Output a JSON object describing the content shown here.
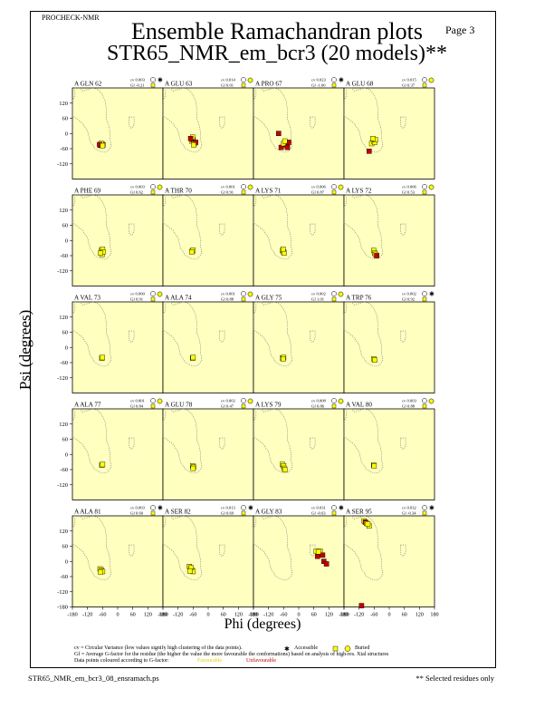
{
  "header": {
    "program": "PROCHECK-NMR",
    "page_label": "Page  3",
    "title_line1": "Ensemble Ramachandran plots",
    "title_line2": "STR65_NMR_em_bcr3 (20 models)**"
  },
  "footer": {
    "filename": "STR65_NMR_em_bcr3_08_ensramach.ps",
    "note": "** Selected residues only"
  },
  "notes": {
    "cv_def": "cv = Circular Variance (low values signify high clustering of the data points).",
    "accessible": "Accessible",
    "buried": "Buried",
    "gf_def": "Gf = Average G-factor for the residue (the higher the value the more favourable the conformations) based on analysis of high-res. Xtal structures",
    "colour_note": "Data points coloured according to G-factor:",
    "favourable": "Favourable",
    "unfavourable": "Unfavourable"
  },
  "colors": {
    "panel_bg": "#ffffc0",
    "favourable": "#ffff00",
    "unfavourable": "#c00000",
    "accessible_box": "#ffff00"
  },
  "chart_data": {
    "type": "scatter",
    "xlabel": "Phi (degrees)",
    "ylabel": "Psi (degrees)",
    "xlim": [
      -180,
      180
    ],
    "ylim": [
      -180,
      180
    ],
    "x_ticks": [
      -180,
      -120,
      -60,
      0,
      60,
      120,
      180
    ],
    "x_tick_labels": [
      "-180",
      "-120",
      "-60",
      "0",
      "60",
      "120",
      "180"
    ],
    "y_ticks": [
      -180,
      -120,
      -60,
      0,
      60,
      120
    ],
    "y_tick_labels": [
      "-180",
      "-120",
      "-60",
      "0",
      "60",
      "120"
    ],
    "residues": [
      {
        "label": "A GLN 62",
        "cv": "cv 0.003",
        "gf": "Gf -0.21",
        "access": "accessible",
        "points": [
          [
            -68,
            -47
          ],
          [
            -62,
            -42
          ],
          [
            -58,
            -45
          ],
          [
            -65,
            -40
          ],
          [
            -72,
            -44
          ],
          [
            -60,
            -48
          ]
        ],
        "colors": [
          "u",
          "u",
          "f",
          "f",
          "u",
          "f"
        ]
      },
      {
        "label": "A GLU 63",
        "cv": "cv 0.014",
        "gf": "Gf 0.01",
        "access": "buried",
        "points": [
          [
            -65,
            -30
          ],
          [
            -60,
            -25
          ],
          [
            -55,
            -40
          ],
          [
            -50,
            -35
          ],
          [
            -62,
            -15
          ],
          [
            -58,
            -45
          ],
          [
            -70,
            -20
          ]
        ],
        "colors": [
          "f",
          "u",
          "f",
          "u",
          "f",
          "f",
          "u"
        ]
      },
      {
        "label": "A PRO 67",
        "cv": "cv 0.023",
        "gf": "Gf -1.00",
        "access": "accessible",
        "points": [
          [
            -70,
            -55
          ],
          [
            -50,
            -45
          ],
          [
            -40,
            -35
          ],
          [
            -60,
            -40
          ],
          [
            -80,
            0
          ],
          [
            -45,
            -55
          ],
          [
            -55,
            -30
          ]
        ],
        "colors": [
          "u",
          "u",
          "u",
          "f",
          "u",
          "u",
          "f"
        ]
      },
      {
        "label": "A GLU 68",
        "cv": "cv 0.015",
        "gf": "Gf 0.37",
        "access": "buried",
        "points": [
          [
            -70,
            -40
          ],
          [
            -62,
            -30
          ],
          [
            -58,
            -35
          ],
          [
            -55,
            -25
          ],
          [
            -65,
            -20
          ],
          [
            -80,
            -70
          ]
        ],
        "colors": [
          "f",
          "f",
          "f",
          "f",
          "f",
          "u"
        ]
      },
      {
        "label": "A PHE 69",
        "cv": "cv 0.003",
        "gf": "Gf 0.62",
        "access": "buried",
        "points": [
          [
            -65,
            -40
          ],
          [
            -60,
            -35
          ],
          [
            -62,
            -55
          ],
          [
            -58,
            -45
          ],
          [
            -68,
            -50
          ]
        ],
        "colors": [
          "f",
          "f",
          "f",
          "f",
          "f"
        ]
      },
      {
        "label": "A THR 70",
        "cv": "cv 0.001",
        "gf": "Gf 0.91",
        "access": "buried",
        "points": [
          [
            -63,
            -42
          ],
          [
            -61,
            -38
          ],
          [
            -65,
            -45
          ]
        ],
        "colors": [
          "f",
          "f",
          "f"
        ]
      },
      {
        "label": "A LYS 71",
        "cv": "cv 0.006",
        "gf": "Gf 0.87",
        "access": "buried",
        "points": [
          [
            -65,
            -40
          ],
          [
            -60,
            -45
          ],
          [
            -58,
            -50
          ],
          [
            -62,
            -35
          ]
        ],
        "colors": [
          "f",
          "f",
          "f",
          "f"
        ]
      },
      {
        "label": "A LYS 72",
        "cv": "cv 0.006",
        "gf": "Gf 0.53",
        "access": "buried",
        "points": [
          [
            -62,
            -40
          ],
          [
            -58,
            -50
          ],
          [
            -55,
            -55
          ],
          [
            -50,
            -60
          ]
        ],
        "colors": [
          "f",
          "f",
          "f",
          "u"
        ]
      },
      {
        "label": "A VAL 73",
        "cv": "cv 0.000",
        "gf": "Gf 0.91",
        "access": "buried",
        "points": [
          [
            -63,
            -42
          ],
          [
            -61,
            -40
          ]
        ],
        "colors": [
          "f",
          "f"
        ]
      },
      {
        "label": "A ALA 74",
        "cv": "cv 0.001",
        "gf": "Gf 0.88",
        "access": "buried",
        "points": [
          [
            -62,
            -42
          ],
          [
            -60,
            -40
          ]
        ],
        "colors": [
          "f",
          "f"
        ]
      },
      {
        "label": "A GLY 75",
        "cv": "cv 0.002",
        "gf": "Gf 1.01",
        "access": "buried",
        "points": [
          [
            -65,
            -42
          ],
          [
            -60,
            -40
          ],
          [
            -62,
            -45
          ]
        ],
        "colors": [
          "f",
          "f",
          "f"
        ]
      },
      {
        "label": "A TRP 76",
        "cv": "cv 0.002",
        "gf": "Gf 0.92",
        "access": "accessible",
        "points": [
          [
            -62,
            -45
          ],
          [
            -58,
            -50
          ]
        ],
        "colors": [
          "f",
          "f"
        ]
      },
      {
        "label": "A ALA 77",
        "cv": "cv 0.001",
        "gf": "Gf 0.84",
        "access": "buried",
        "points": [
          [
            -63,
            -42
          ],
          [
            -60,
            -40
          ]
        ],
        "colors": [
          "f",
          "f"
        ]
      },
      {
        "label": "A GLU 78",
        "cv": "cv 0.002",
        "gf": "Gf 0.47",
        "access": "buried",
        "points": [
          [
            -62,
            -45
          ],
          [
            -58,
            -50
          ],
          [
            -60,
            -55
          ]
        ],
        "colors": [
          "f",
          "f",
          "f"
        ]
      },
      {
        "label": "A LYS 79",
        "cv": "cv 0.008",
        "gf": "Gf 0.86",
        "access": "buried",
        "points": [
          [
            -65,
            -40
          ],
          [
            -60,
            -45
          ],
          [
            -58,
            -55
          ],
          [
            -55,
            -60
          ]
        ],
        "colors": [
          "f",
          "f",
          "f",
          "f"
        ]
      },
      {
        "label": "A VAL 80",
        "cv": "cv 0.003",
        "gf": "Gf 0.88",
        "access": "buried",
        "points": [
          [
            -62,
            -42
          ],
          [
            -60,
            -45
          ]
        ],
        "colors": [
          "f",
          "f"
        ]
      },
      {
        "label": "A ALA 81",
        "cv": "cv 0.003",
        "gf": "Gf 0.60",
        "access": "accessible",
        "points": [
          [
            -70,
            -30
          ],
          [
            -65,
            -35
          ],
          [
            -60,
            -40
          ],
          [
            -68,
            -42
          ]
        ],
        "colors": [
          "f",
          "f",
          "f",
          "f"
        ]
      },
      {
        "label": "A SER 82",
        "cv": "cv 0.013",
        "gf": "Gf 0.69",
        "access": "accessible",
        "points": [
          [
            -75,
            -20
          ],
          [
            -70,
            -30
          ],
          [
            -65,
            -35
          ],
          [
            -60,
            -40
          ],
          [
            -68,
            -25
          ],
          [
            -72,
            -38
          ]
        ],
        "colors": [
          "f",
          "f",
          "f",
          "f",
          "f",
          "f"
        ]
      },
      {
        "label": "A GLY 83",
        "cv": "cv 0.031",
        "gf": "Gf -0.63",
        "access": "accessible",
        "points": [
          [
            70,
            40
          ],
          [
            80,
            30
          ],
          [
            75,
            20
          ],
          [
            85,
            40
          ],
          [
            100,
            0
          ],
          [
            110,
            -10
          ],
          [
            95,
            25
          ],
          [
            78,
            38
          ]
        ],
        "colors": [
          "f",
          "u",
          "u",
          "f",
          "u",
          "u",
          "u",
          "f"
        ]
      },
      {
        "label": "A SER 95",
        "cv": "cv 0.032",
        "gf": "Gf -0.34",
        "access": "accessible",
        "points": [
          [
            -100,
            160
          ],
          [
            -95,
            155
          ],
          [
            -90,
            150
          ],
          [
            -80,
            140
          ],
          [
            -110,
            -175
          ],
          [
            -85,
            148
          ]
        ],
        "colors": [
          "f",
          "u",
          "f",
          "f",
          "u",
          "f"
        ]
      }
    ]
  }
}
